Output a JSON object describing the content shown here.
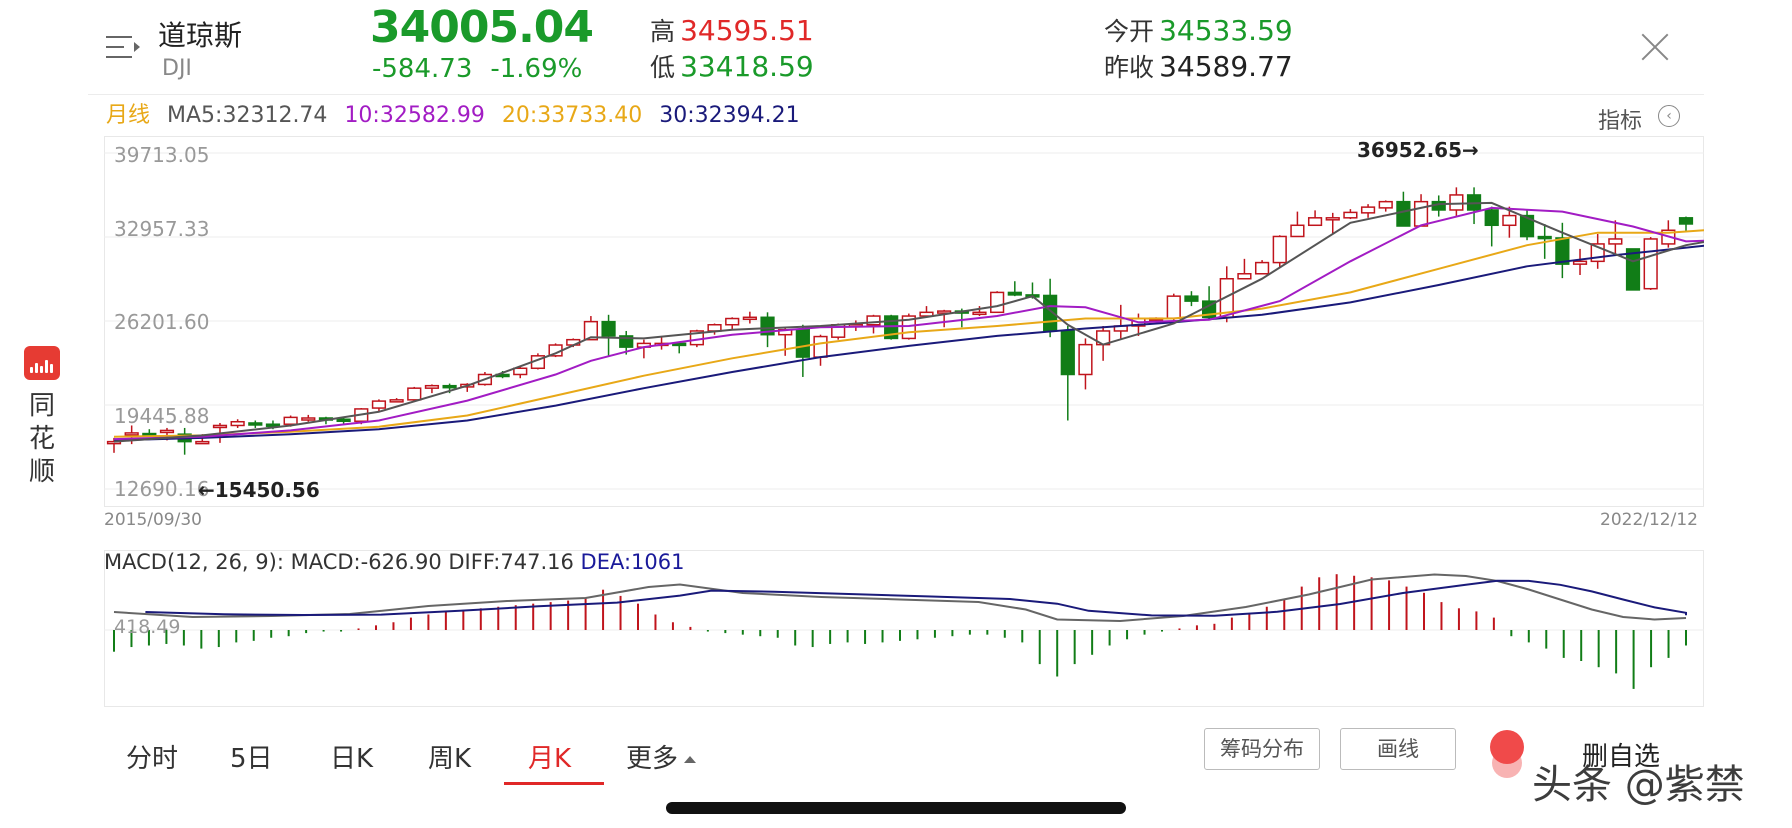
{
  "brand": {
    "app_name": "同花顺",
    "logo_icon": "ths-logo-icon"
  },
  "header": {
    "name": "道琼斯",
    "code": "DJI",
    "price": "34005.04",
    "change": "-584.73",
    "change_pct": "-1.69%",
    "high_label": "高",
    "high": "34595.51",
    "low_label": "低",
    "low": "33418.59",
    "open_label": "今开",
    "open": "34533.59",
    "prev_close_label": "昨收",
    "prev_close": "34589.77",
    "menu_icon": "menu-icon",
    "close_icon": "close-icon"
  },
  "ma_legend": {
    "period": "月线",
    "ma5": "MA5:32312.74",
    "ma10": "10:32582.99",
    "ma20": "20:33733.40",
    "ma30": "30:32394.21",
    "indicator_label": "指标",
    "indicator_icon": "chevron-left-circle-icon"
  },
  "colors": {
    "up": "#c0141c",
    "down": "#117d17",
    "ma5": "#555555",
    "ma10": "#a21cc4",
    "ma20": "#e8a817",
    "ma30": "#1a1a7a",
    "price_green": "#1a9a2a",
    "accent_red": "#e02828"
  },
  "chart_data": [
    {
      "type": "candlestick",
      "title": "",
      "y_ticks": [
        "39713.05",
        "32957.33",
        "26201.60",
        "19445.88",
        "12690.16"
      ],
      "y_ticks_values": [
        39713.05,
        32957.33,
        26201.6,
        19445.88,
        12690.16
      ],
      "ylim": [
        12690.16,
        39713.05
      ],
      "x_start": "2015/09/30",
      "x_end": "2022/12/12",
      "annotations": {
        "max": "36952.65→",
        "min": "←15450.56"
      },
      "candles": [
        [
          16500,
          16460,
          16800,
          15600
        ],
        [
          17200,
          17200,
          17800,
          16300
        ],
        [
          17100,
          17150,
          17500,
          16900
        ],
        [
          17400,
          17300,
          17600,
          16600
        ],
        [
          16500,
          17100,
          17600,
          15450
        ],
        [
          16500,
          16500,
          17100,
          16500
        ],
        [
          17800,
          17700,
          18000,
          16400
        ],
        [
          18100,
          17800,
          18300,
          17600
        ],
        [
          17900,
          18000,
          18200,
          17600
        ],
        [
          17850,
          17900,
          18200,
          17500
        ],
        [
          18450,
          17900,
          18600,
          17700
        ],
        [
          18400,
          18400,
          18650,
          18100
        ],
        [
          18300,
          18400,
          18500,
          17900
        ],
        [
          18140,
          18300,
          18400,
          17900
        ],
        [
          19130,
          18140,
          19200,
          17900
        ],
        [
          19760,
          19200,
          19900,
          18900
        ],
        [
          19860,
          19800,
          20000,
          19700
        ],
        [
          20800,
          19860,
          20900,
          19800
        ],
        [
          21000,
          20800,
          21100,
          20400
        ],
        [
          20900,
          21000,
          21170,
          20400
        ],
        [
          21100,
          20900,
          21200,
          20500
        ],
        [
          21900,
          21100,
          22100,
          21000
        ],
        [
          21890,
          21900,
          22180,
          21600
        ],
        [
          22400,
          21900,
          22500,
          21600
        ],
        [
          23400,
          22400,
          23600,
          22300
        ],
        [
          24270,
          23400,
          24400,
          23300
        ],
        [
          24700,
          24270,
          24800,
          24100
        ],
        [
          26150,
          24700,
          26600,
          24700
        ],
        [
          25000,
          26150,
          26700,
          23400
        ],
        [
          24100,
          25000,
          25400,
          23500
        ],
        [
          24400,
          24100,
          24700,
          23200
        ],
        [
          24400,
          24400,
          25000,
          23900
        ],
        [
          24300,
          24400,
          24500,
          23600
        ],
        [
          25400,
          24300,
          25500,
          24100
        ],
        [
          25900,
          25400,
          26000,
          25100
        ],
        [
          26400,
          25900,
          26500,
          25500
        ],
        [
          26500,
          26400,
          26950,
          26000
        ],
        [
          25100,
          26500,
          26900,
          24100
        ],
        [
          25500,
          25100,
          25600,
          23400
        ],
        [
          23300,
          25500,
          25900,
          21700
        ],
        [
          24950,
          23300,
          25100,
          22600
        ],
        [
          25900,
          24900,
          26000,
          24700
        ],
        [
          25900,
          25900,
          26250,
          25400
        ],
        [
          26600,
          25900,
          26700,
          25200
        ],
        [
          24800,
          26600,
          26700,
          24700
        ],
        [
          26600,
          24800,
          26800,
          24700
        ],
        [
          26900,
          26600,
          27400,
          26700
        ],
        [
          27000,
          26900,
          27100,
          25700
        ],
        [
          26900,
          27000,
          27200,
          25700
        ],
        [
          26900,
          26900,
          27400,
          26600
        ],
        [
          28500,
          26900,
          28600,
          27300
        ],
        [
          28300,
          28500,
          29400,
          28200
        ],
        [
          28256,
          28300,
          29300,
          28000
        ],
        [
          25400,
          28256,
          29600,
          24900
        ],
        [
          21900,
          25400,
          25800,
          18200
        ],
        [
          24300,
          21900,
          24800,
          20700
        ],
        [
          25400,
          24300,
          25800,
          23000
        ],
        [
          25800,
          25400,
          27500,
          24800
        ],
        [
          26400,
          25800,
          26800,
          25000
        ],
        [
          26428,
          26400,
          26500,
          26100
        ],
        [
          28200,
          26428,
          28400,
          26200
        ],
        [
          27800,
          28200,
          28600,
          27400
        ],
        [
          26500,
          27800,
          29000,
          26400
        ],
        [
          29600,
          26500,
          30600,
          26100
        ],
        [
          30000,
          29600,
          31200,
          29600
        ],
        [
          30900,
          30000,
          31100,
          30000
        ],
        [
          33000,
          30900,
          33100,
          30500
        ],
        [
          33900,
          33000,
          35000,
          33200
        ],
        [
          34500,
          33900,
          35100,
          33900
        ],
        [
          34500,
          34500,
          34900,
          33200
        ],
        [
          34935,
          34500,
          35200,
          34400
        ],
        [
          35360,
          34900,
          35600,
          34500
        ],
        [
          35800,
          35300,
          35900,
          35000
        ],
        [
          33840,
          35800,
          36600,
          35100
        ],
        [
          35800,
          33840,
          36400,
          34000
        ],
        [
          35130,
          35800,
          36300,
          34600
        ],
        [
          36340,
          35130,
          36950,
          34600
        ],
        [
          35130,
          36340,
          36950,
          34000
        ],
        [
          33900,
          35130,
          35400,
          32200
        ],
        [
          34680,
          33900,
          35400,
          32900
        ],
        [
          32990,
          34680,
          35100,
          32700
        ],
        [
          32880,
          32990,
          34000,
          31200
        ],
        [
          30775,
          32880,
          34100,
          29650
        ],
        [
          31000,
          30775,
          32000,
          29900
        ],
        [
          32400,
          31000,
          33200,
          30400
        ],
        [
          32800,
          32400,
          34300,
          31600
        ],
        [
          28700,
          32000,
          32000,
          28700
        ],
        [
          32800,
          28800,
          32950,
          28700
        ],
        [
          33500,
          32400,
          34300,
          32100
        ],
        [
          34005,
          34500,
          34600,
          33400
        ]
      ],
      "ma5": [
        [
          0,
          16500
        ],
        [
          5,
          17000
        ],
        [
          10,
          17800
        ],
        [
          15,
          18900
        ],
        [
          20,
          21000
        ],
        [
          25,
          23600
        ],
        [
          27,
          24900
        ],
        [
          30,
          24800
        ],
        [
          35,
          25500
        ],
        [
          40,
          25800
        ],
        [
          45,
          26300
        ],
        [
          50,
          27400
        ],
        [
          52,
          28200
        ],
        [
          54,
          25900
        ],
        [
          56,
          24300
        ],
        [
          60,
          26000
        ],
        [
          65,
          29600
        ],
        [
          70,
          34100
        ],
        [
          75,
          35600
        ],
        [
          78,
          35700
        ],
        [
          82,
          33300
        ],
        [
          86,
          31000
        ],
        [
          89,
          32300
        ],
        [
          91,
          32800
        ]
      ],
      "ma10": [
        [
          0,
          16700
        ],
        [
          5,
          16900
        ],
        [
          10,
          17400
        ],
        [
          15,
          18200
        ],
        [
          20,
          19800
        ],
        [
          25,
          21900
        ],
        [
          27,
          23000
        ],
        [
          30,
          24100
        ],
        [
          35,
          25100
        ],
        [
          40,
          25700
        ],
        [
          45,
          25800
        ],
        [
          50,
          26600
        ],
        [
          53,
          27400
        ],
        [
          55,
          27300
        ],
        [
          58,
          26100
        ],
        [
          62,
          26300
        ],
        [
          66,
          27800
        ],
        [
          70,
          31000
        ],
        [
          74,
          33900
        ],
        [
          78,
          35300
        ],
        [
          82,
          35000
        ],
        [
          86,
          33800
        ],
        [
          89,
          32600
        ],
        [
          91,
          32700
        ]
      ],
      "ma20": [
        [
          0,
          16900
        ],
        [
          5,
          17000
        ],
        [
          10,
          17300
        ],
        [
          15,
          17700
        ],
        [
          20,
          18600
        ],
        [
          25,
          20200
        ],
        [
          30,
          21800
        ],
        [
          35,
          23200
        ],
        [
          40,
          24400
        ],
        [
          45,
          25300
        ],
        [
          50,
          25800
        ],
        [
          55,
          26400
        ],
        [
          60,
          26400
        ],
        [
          65,
          27200
        ],
        [
          70,
          28500
        ],
        [
          75,
          30400
        ],
        [
          80,
          32300
        ],
        [
          84,
          33300
        ],
        [
          88,
          33300
        ],
        [
          91,
          33600
        ]
      ],
      "ma30": [
        [
          0,
          16600
        ],
        [
          5,
          16800
        ],
        [
          10,
          17100
        ],
        [
          15,
          17500
        ],
        [
          20,
          18200
        ],
        [
          25,
          19400
        ],
        [
          30,
          20800
        ],
        [
          35,
          22100
        ],
        [
          40,
          23300
        ],
        [
          45,
          24200
        ],
        [
          50,
          25000
        ],
        [
          55,
          25600
        ],
        [
          60,
          26100
        ],
        [
          65,
          26700
        ],
        [
          70,
          27700
        ],
        [
          75,
          29100
        ],
        [
          80,
          30600
        ],
        [
          85,
          31500
        ],
        [
          91,
          32400
        ]
      ]
    },
    {
      "type": "bar+line",
      "title": "MACD",
      "legend_prefix": "MACD(12, 26, 9):",
      "macd_text": "MACD:-626.90",
      "diff_text": "DIFF:747.16",
      "dea_text": "DEA:1061",
      "zero_label": "418.49",
      "macd_bars": [
        -14,
        -11,
        -10,
        -9,
        -10,
        -12,
        -11,
        -8,
        -7,
        -5,
        -4,
        -2,
        -1,
        -1,
        1,
        3,
        5,
        8,
        10,
        12,
        13,
        14,
        15,
        16,
        17,
        18,
        19,
        21,
        26,
        22,
        17,
        10,
        5,
        2,
        -1,
        -2,
        -3,
        -4,
        -5,
        -10,
        -11,
        -9,
        -8,
        -9,
        -8,
        -7,
        -6,
        -5,
        -4,
        -3,
        -3,
        -5,
        -8,
        -22,
        -30,
        -22,
        -16,
        -10,
        -6,
        -3,
        -1,
        1,
        3,
        4,
        8,
        11,
        15,
        20,
        28,
        34,
        36,
        35,
        34,
        32,
        28,
        24,
        18,
        14,
        12,
        8,
        -4,
        -8,
        -12,
        -18,
        -20,
        -24,
        -28,
        -38,
        -24,
        -18,
        -10
      ],
      "diff_line": [
        [
          0,
          0.2
        ],
        [
          5,
          0.1
        ],
        [
          10,
          0.12
        ],
        [
          15,
          0.16
        ],
        [
          20,
          0.32
        ],
        [
          25,
          0.42
        ],
        [
          30,
          0.48
        ],
        [
          34,
          0.7
        ],
        [
          36,
          0.75
        ],
        [
          40,
          0.58
        ],
        [
          45,
          0.5
        ],
        [
          50,
          0.45
        ],
        [
          55,
          0.4
        ],
        [
          58,
          0.25
        ],
        [
          60,
          0.05
        ],
        [
          64,
          0.02
        ],
        [
          68,
          0.12
        ],
        [
          72,
          0.3
        ],
        [
          76,
          0.55
        ],
        [
          80,
          0.85
        ],
        [
          84,
          0.95
        ],
        [
          86,
          0.92
        ],
        [
          88,
          0.82
        ],
        [
          90,
          0.65
        ],
        [
          92,
          0.45
        ],
        [
          94,
          0.25
        ],
        [
          96,
          0.1
        ],
        [
          98,
          0.05
        ],
        [
          100,
          0.08
        ]
      ]
    }
  ],
  "tabs": {
    "intraday": "分时",
    "five_day": "5日",
    "day_k": "日K",
    "week_k": "周K",
    "month_k": "月K",
    "more": "更多"
  },
  "buttons": {
    "chip_dist": "筹码分布",
    "draw_line": "画线",
    "remove_fav": "删自选"
  },
  "watermark": "头条 @紫禁"
}
